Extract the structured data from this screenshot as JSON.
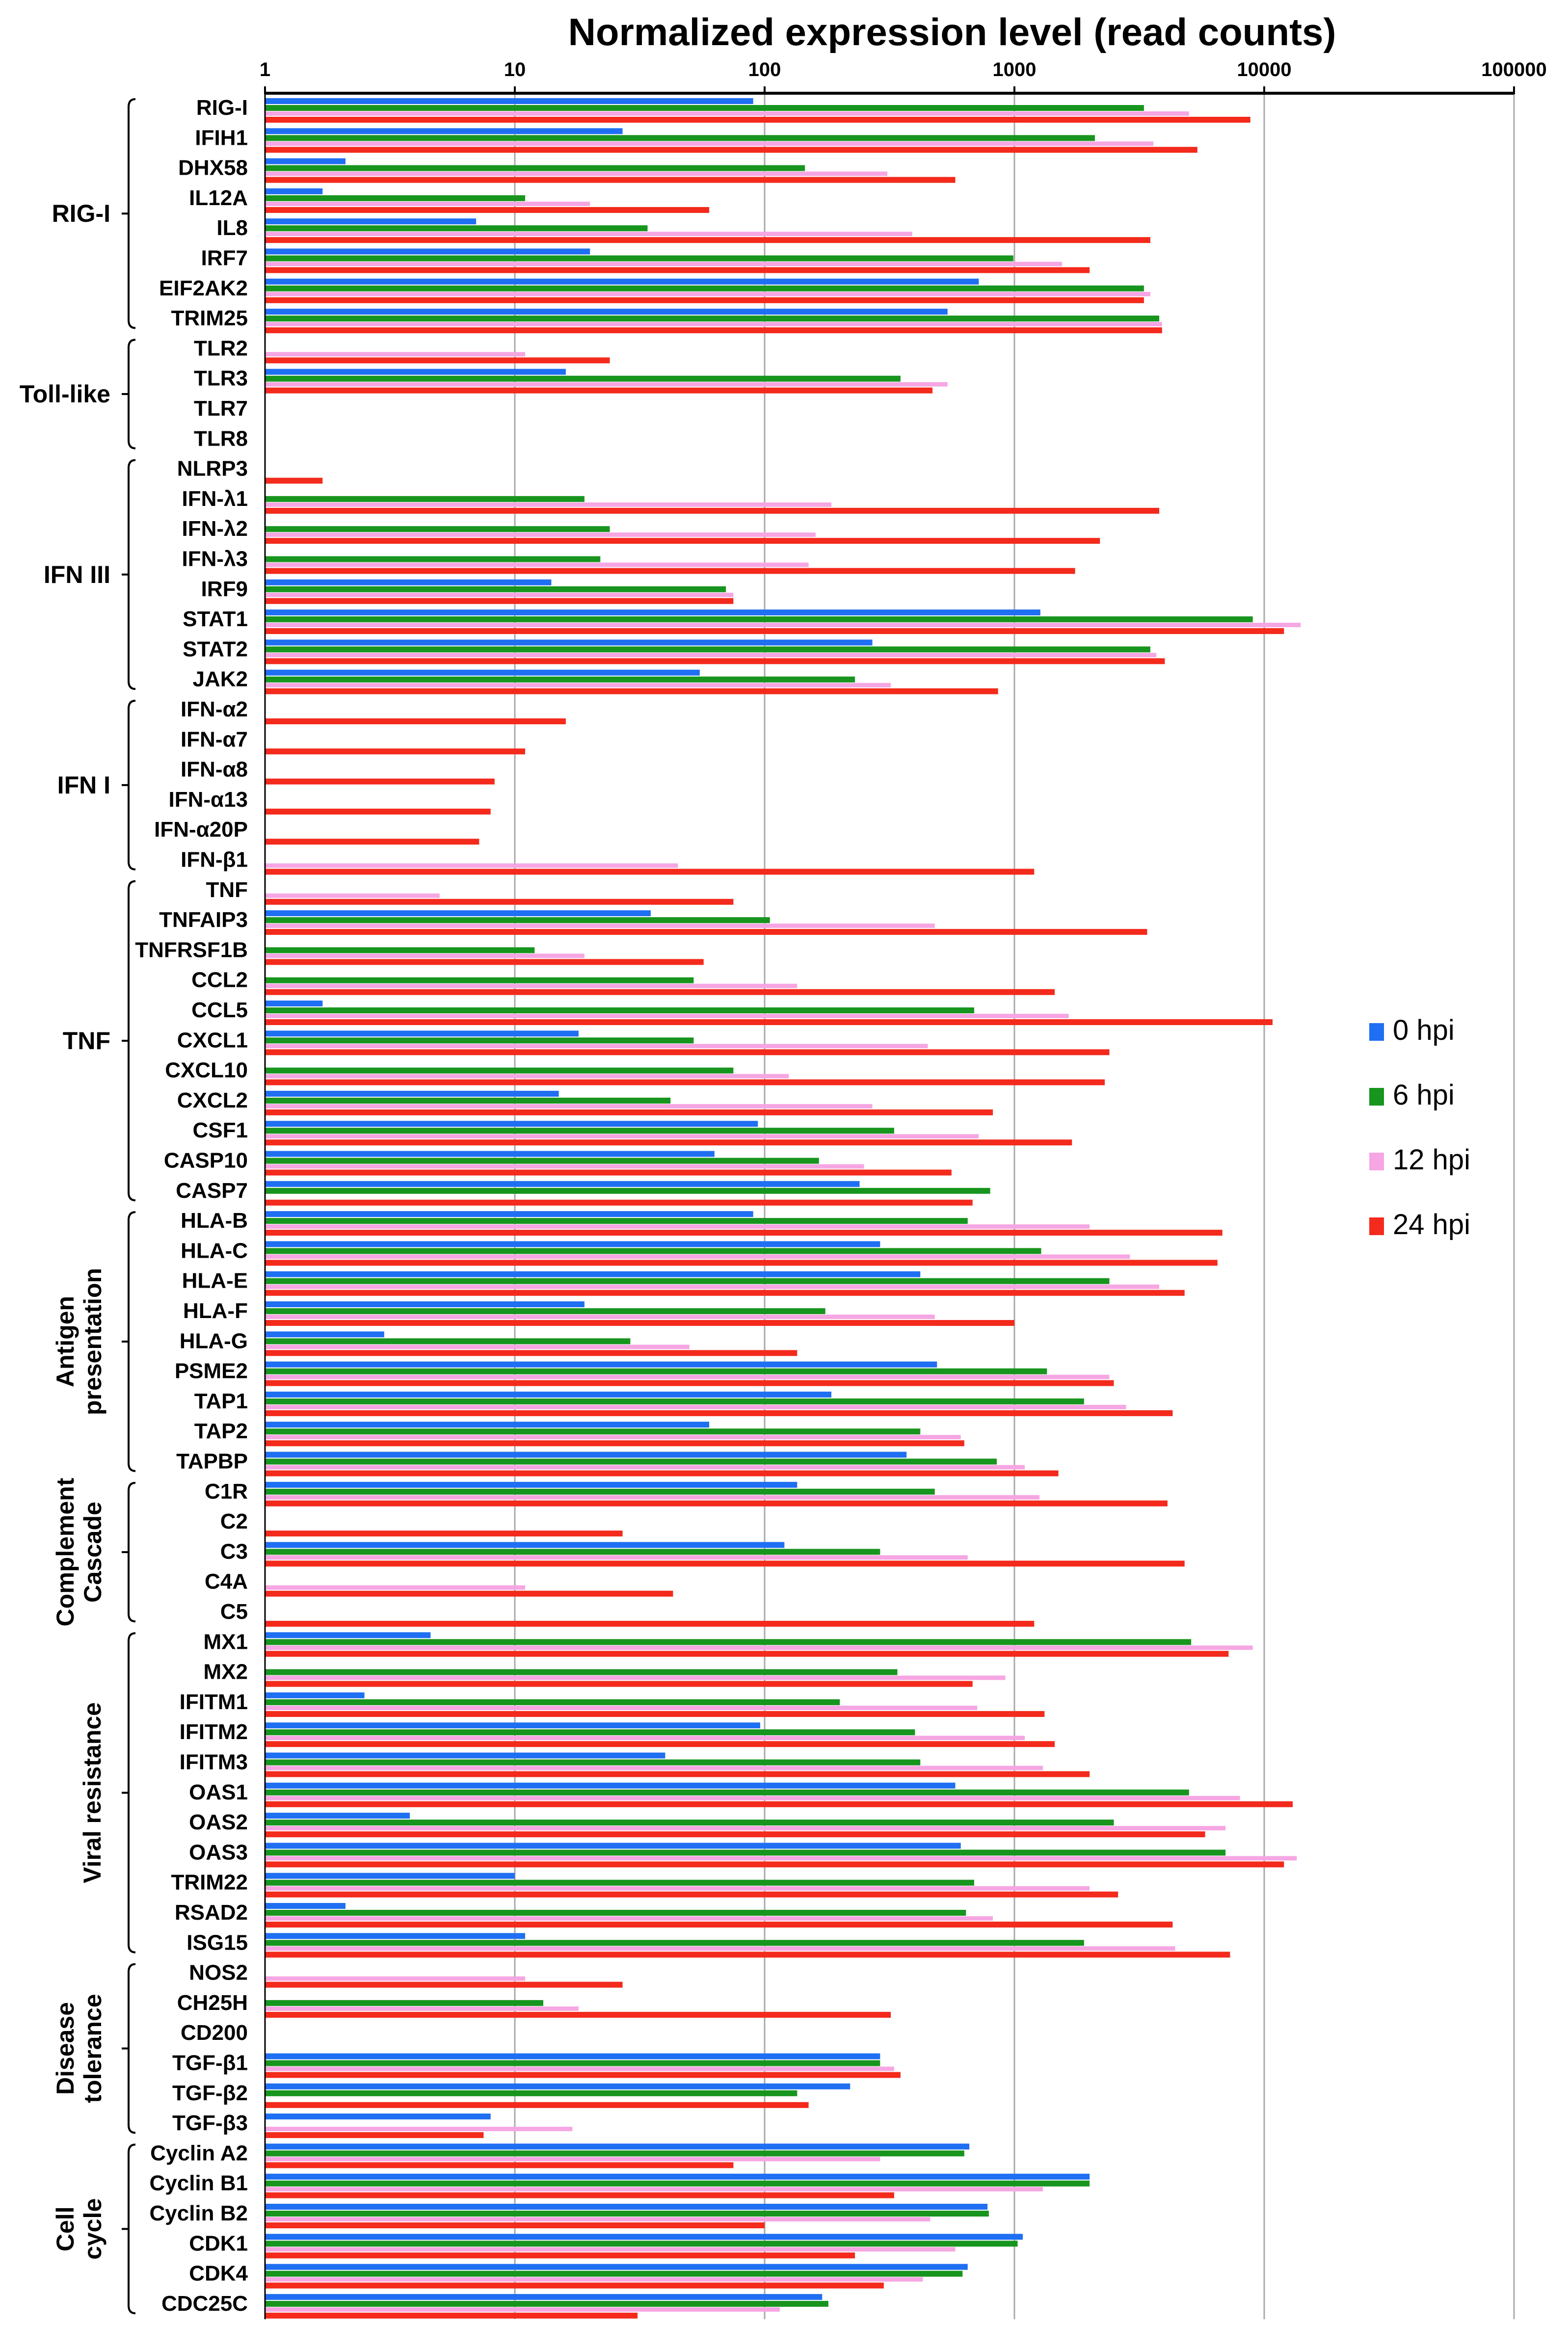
{
  "chart_data": {
    "type": "bar",
    "orientation": "horizontal",
    "x_scale": "log",
    "xlim": [
      1,
      100000
    ],
    "xlabel": "Normalized expression level (read counts)",
    "x_ticks": [
      "1",
      "10",
      "100",
      "1000",
      "10000",
      "100000"
    ],
    "grid": true,
    "legend_position": "right",
    "colors": {
      "0 hpi": "#1f6ff2",
      "6 hpi": "#17951e",
      "12 hpi": "#f6a6e3",
      "24 hpi": "#f32a1c",
      "grid": "#a9a9a9",
      "bar_line": "#b84c3e"
    },
    "series": [
      {
        "name": "0 hpi"
      },
      {
        "name": "6 hpi"
      },
      {
        "name": "12 hpi"
      },
      {
        "name": "24 hpi"
      }
    ],
    "groups": [
      {
        "name": "RIG-I",
        "genes": [
          {
            "label": "RIG-I",
            "values": [
              90,
              3300,
              5000,
              8800
            ]
          },
          {
            "label": "IFIH1",
            "values": [
              27,
              2100,
              3600,
              5400
            ]
          },
          {
            "label": "DHX58",
            "values": [
              2.1,
              145,
              310,
              580
            ]
          },
          {
            "label": "IL12A",
            "values": [
              1.7,
              11,
              20,
              60
            ]
          },
          {
            "label": "IL8",
            "values": [
              7,
              34,
              390,
              3500
            ]
          },
          {
            "label": "IRF7",
            "values": [
              20,
              990,
              1550,
              2000
            ]
          },
          {
            "label": "EIF2AK2",
            "values": [
              720,
              3300,
              3500,
              3300
            ]
          },
          {
            "label": "TRIM25",
            "values": [
              540,
              3800,
              3900,
              3900
            ]
          }
        ]
      },
      {
        "name": "Toll-like",
        "genes": [
          {
            "label": "TLR2",
            "values": [
              null,
              null,
              11,
              24
            ]
          },
          {
            "label": "TLR3",
            "values": [
              16,
              350,
              540,
              470
            ]
          },
          {
            "label": "TLR7",
            "values": [
              null,
              null,
              null,
              null
            ]
          },
          {
            "label": "TLR8",
            "values": [
              null,
              null,
              null,
              null
            ]
          }
        ]
      },
      {
        "name": "IFN III",
        "genes": [
          {
            "label": "NLRP3",
            "values": [
              null,
              null,
              null,
              1.7
            ]
          },
          {
            "label": "IFN-λ1",
            "values": [
              null,
              19,
              185,
              3800
            ]
          },
          {
            "label": "IFN-λ2",
            "values": [
              null,
              24,
              160,
              2200
            ]
          },
          {
            "label": "IFN-λ3",
            "values": [
              null,
              22,
              150,
              1750
            ]
          },
          {
            "label": "IRF9",
            "values": [
              14,
              70,
              75,
              75
            ]
          },
          {
            "label": "STAT1",
            "values": [
              1270,
              9000,
              14000,
              12000
            ]
          },
          {
            "label": "STAT2",
            "values": [
              270,
              3500,
              3700,
              4000
            ]
          },
          {
            "label": "JAK2",
            "values": [
              55,
              230,
              320,
              860
            ]
          }
        ]
      },
      {
        "name": "IFN I",
        "genes": [
          {
            "label": "IFN-α2",
            "values": [
              null,
              null,
              null,
              16
            ]
          },
          {
            "label": "IFN-α7",
            "values": [
              null,
              null,
              null,
              11
            ]
          },
          {
            "label": "IFN-α8",
            "values": [
              null,
              null,
              null,
              8.3
            ]
          },
          {
            "label": "IFN-α13",
            "values": [
              null,
              null,
              null,
              8
            ]
          },
          {
            "label": "IFN-α20P",
            "values": [
              null,
              null,
              null,
              7.2
            ]
          },
          {
            "label": "IFN-β1",
            "values": [
              null,
              null,
              45,
              1200
            ]
          }
        ]
      },
      {
        "name": "TNF",
        "genes": [
          {
            "label": "TNF",
            "values": [
              null,
              null,
              5,
              75
            ]
          },
          {
            "label": "TNFAIP3",
            "values": [
              35,
              105,
              480,
              3400
            ]
          },
          {
            "label": "TNFRSF1B",
            "values": [
              null,
              12,
              19,
              57
            ]
          },
          {
            "label": "CCL2",
            "values": [
              null,
              52,
              135,
              1450
            ]
          },
          {
            "label": "CCL5",
            "values": [
              1.7,
              690,
              1650,
              10800
            ]
          },
          {
            "label": "CXCL1",
            "values": [
              18,
              52,
              450,
              2400
            ]
          },
          {
            "label": "CXCL10",
            "values": [
              null,
              75,
              125,
              2300
            ]
          },
          {
            "label": "CXCL2",
            "values": [
              15,
              42,
              270,
              820
            ]
          },
          {
            "label": "CSF1",
            "values": [
              94,
              330,
              720,
              1700
            ]
          },
          {
            "label": "CASP10",
            "values": [
              63,
              165,
              250,
              560
            ]
          },
          {
            "label": "CASP7",
            "values": [
              240,
              800,
              null,
              680
            ]
          }
        ]
      },
      {
        "name": "Antigen presentation",
        "genes": [
          {
            "label": "HLA-B",
            "values": [
              90,
              650,
              2000,
              6800
            ]
          },
          {
            "label": "HLA-C",
            "values": [
              290,
              1280,
              2900,
              6500
            ]
          },
          {
            "label": "HLA-E",
            "values": [
              420,
              2400,
              3800,
              4800
            ]
          },
          {
            "label": "HLA-F",
            "values": [
              19,
              175,
              480,
              1000
            ]
          },
          {
            "label": "HLA-G",
            "values": [
              3,
              29,
              50,
              135
            ]
          },
          {
            "label": "PSME2",
            "values": [
              490,
              1350,
              2400,
              2500
            ]
          },
          {
            "label": "TAP1",
            "values": [
              185,
              1900,
              2800,
              4300
            ]
          },
          {
            "label": "TAP2",
            "values": [
              60,
              420,
              610,
              630
            ]
          },
          {
            "label": "TAPBP",
            "values": [
              370,
              850,
              1100,
              1500
            ]
          }
        ]
      },
      {
        "name": "Complement Cascade",
        "genes": [
          {
            "label": "C1R",
            "values": [
              135,
              480,
              1260,
              4100
            ]
          },
          {
            "label": "C2",
            "values": [
              null,
              null,
              null,
              27
            ]
          },
          {
            "label": "C3",
            "values": [
              120,
              290,
              650,
              4800
            ]
          },
          {
            "label": "C4A",
            "values": [
              null,
              null,
              11,
              43
            ]
          },
          {
            "label": "C5",
            "values": [
              null,
              null,
              null,
              1200
            ]
          }
        ]
      },
      {
        "name": "Viral resistance",
        "genes": [
          {
            "label": "MX1",
            "values": [
              4.6,
              5100,
              9000,
              7200
            ]
          },
          {
            "label": "MX2",
            "values": [
              null,
              340,
              920,
              680
            ]
          },
          {
            "label": "IFITM1",
            "values": [
              2.5,
              200,
              710,
              1320
            ]
          },
          {
            "label": "IFITM2",
            "values": [
              96,
              400,
              1100,
              1450
            ]
          },
          {
            "label": "IFITM3",
            "values": [
              40,
              420,
              1300,
              2000
            ]
          },
          {
            "label": "OAS1",
            "values": [
              580,
              5000,
              8000,
              13000
            ]
          },
          {
            "label": "OAS2",
            "values": [
              3.8,
              2500,
              7000,
              5800
            ]
          },
          {
            "label": "OAS3",
            "values": [
              610,
              7000,
              13500,
              12000
            ]
          },
          {
            "label": "TRIM22",
            "values": [
              10,
              690,
              2000,
              2600
            ]
          },
          {
            "label": "RSAD2",
            "values": [
              2.1,
              640,
              820,
              4300
            ]
          },
          {
            "label": "ISG15",
            "values": [
              11,
              1900,
              4400,
              7300
            ]
          }
        ]
      },
      {
        "name": "Disease tolerance",
        "genes": [
          {
            "label": "NOS2",
            "values": [
              null,
              null,
              11,
              27
            ]
          },
          {
            "label": "CH25H",
            "values": [
              null,
              13,
              18,
              320
            ]
          },
          {
            "label": "CD200",
            "values": [
              null,
              null,
              null,
              null
            ]
          },
          {
            "label": "TGF-β1",
            "values": [
              290,
              290,
              330,
              350
            ]
          },
          {
            "label": "TGF-β2",
            "values": [
              220,
              135,
              null,
              150
            ]
          },
          {
            "label": "TGF-β3",
            "values": [
              8,
              null,
              17,
              7.5
            ]
          }
        ]
      },
      {
        "name": "Cell cycle",
        "genes": [
          {
            "label": "Cyclin A2",
            "values": [
              660,
              630,
              290,
              75
            ]
          },
          {
            "label": "Cyclin B1",
            "values": [
              2000,
              2000,
              1300,
              330
            ]
          },
          {
            "label": "Cyclin B2",
            "values": [
              780,
              790,
              460,
              100
            ]
          },
          {
            "label": "CDK1",
            "values": [
              1080,
              1030,
              580,
              230
            ]
          },
          {
            "label": "CDK4",
            "values": [
              650,
              620,
              430,
              300
            ]
          },
          {
            "label": "CDC25C",
            "values": [
              170,
              180,
              115,
              31
            ]
          }
        ]
      }
    ]
  }
}
